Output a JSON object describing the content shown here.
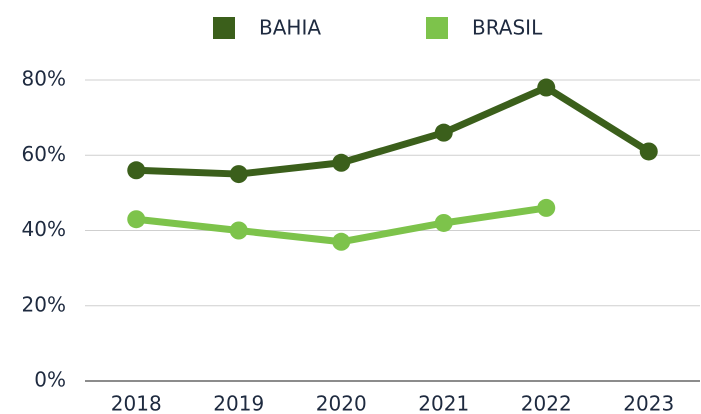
{
  "chart_data": {
    "type": "line",
    "categories": [
      "2018",
      "2019",
      "2020",
      "2021",
      "2022",
      "2023"
    ],
    "series": [
      {
        "name": "BAHIA",
        "color": "#3b5f1b",
        "values": [
          56,
          55,
          58,
          66,
          78,
          61
        ]
      },
      {
        "name": "BRASIL",
        "color": "#7dc34b",
        "values": [
          43,
          40,
          37,
          42,
          46,
          null
        ]
      }
    ],
    "ylim": [
      0,
      80
    ],
    "yticks": [
      {
        "value": 0,
        "label": "0%"
      },
      {
        "value": 20,
        "label": "20%"
      },
      {
        "value": 40,
        "label": "40%"
      },
      {
        "value": 60,
        "label": "60%"
      },
      {
        "value": 80,
        "label": "80%"
      }
    ],
    "grid": true,
    "legend": "top"
  }
}
